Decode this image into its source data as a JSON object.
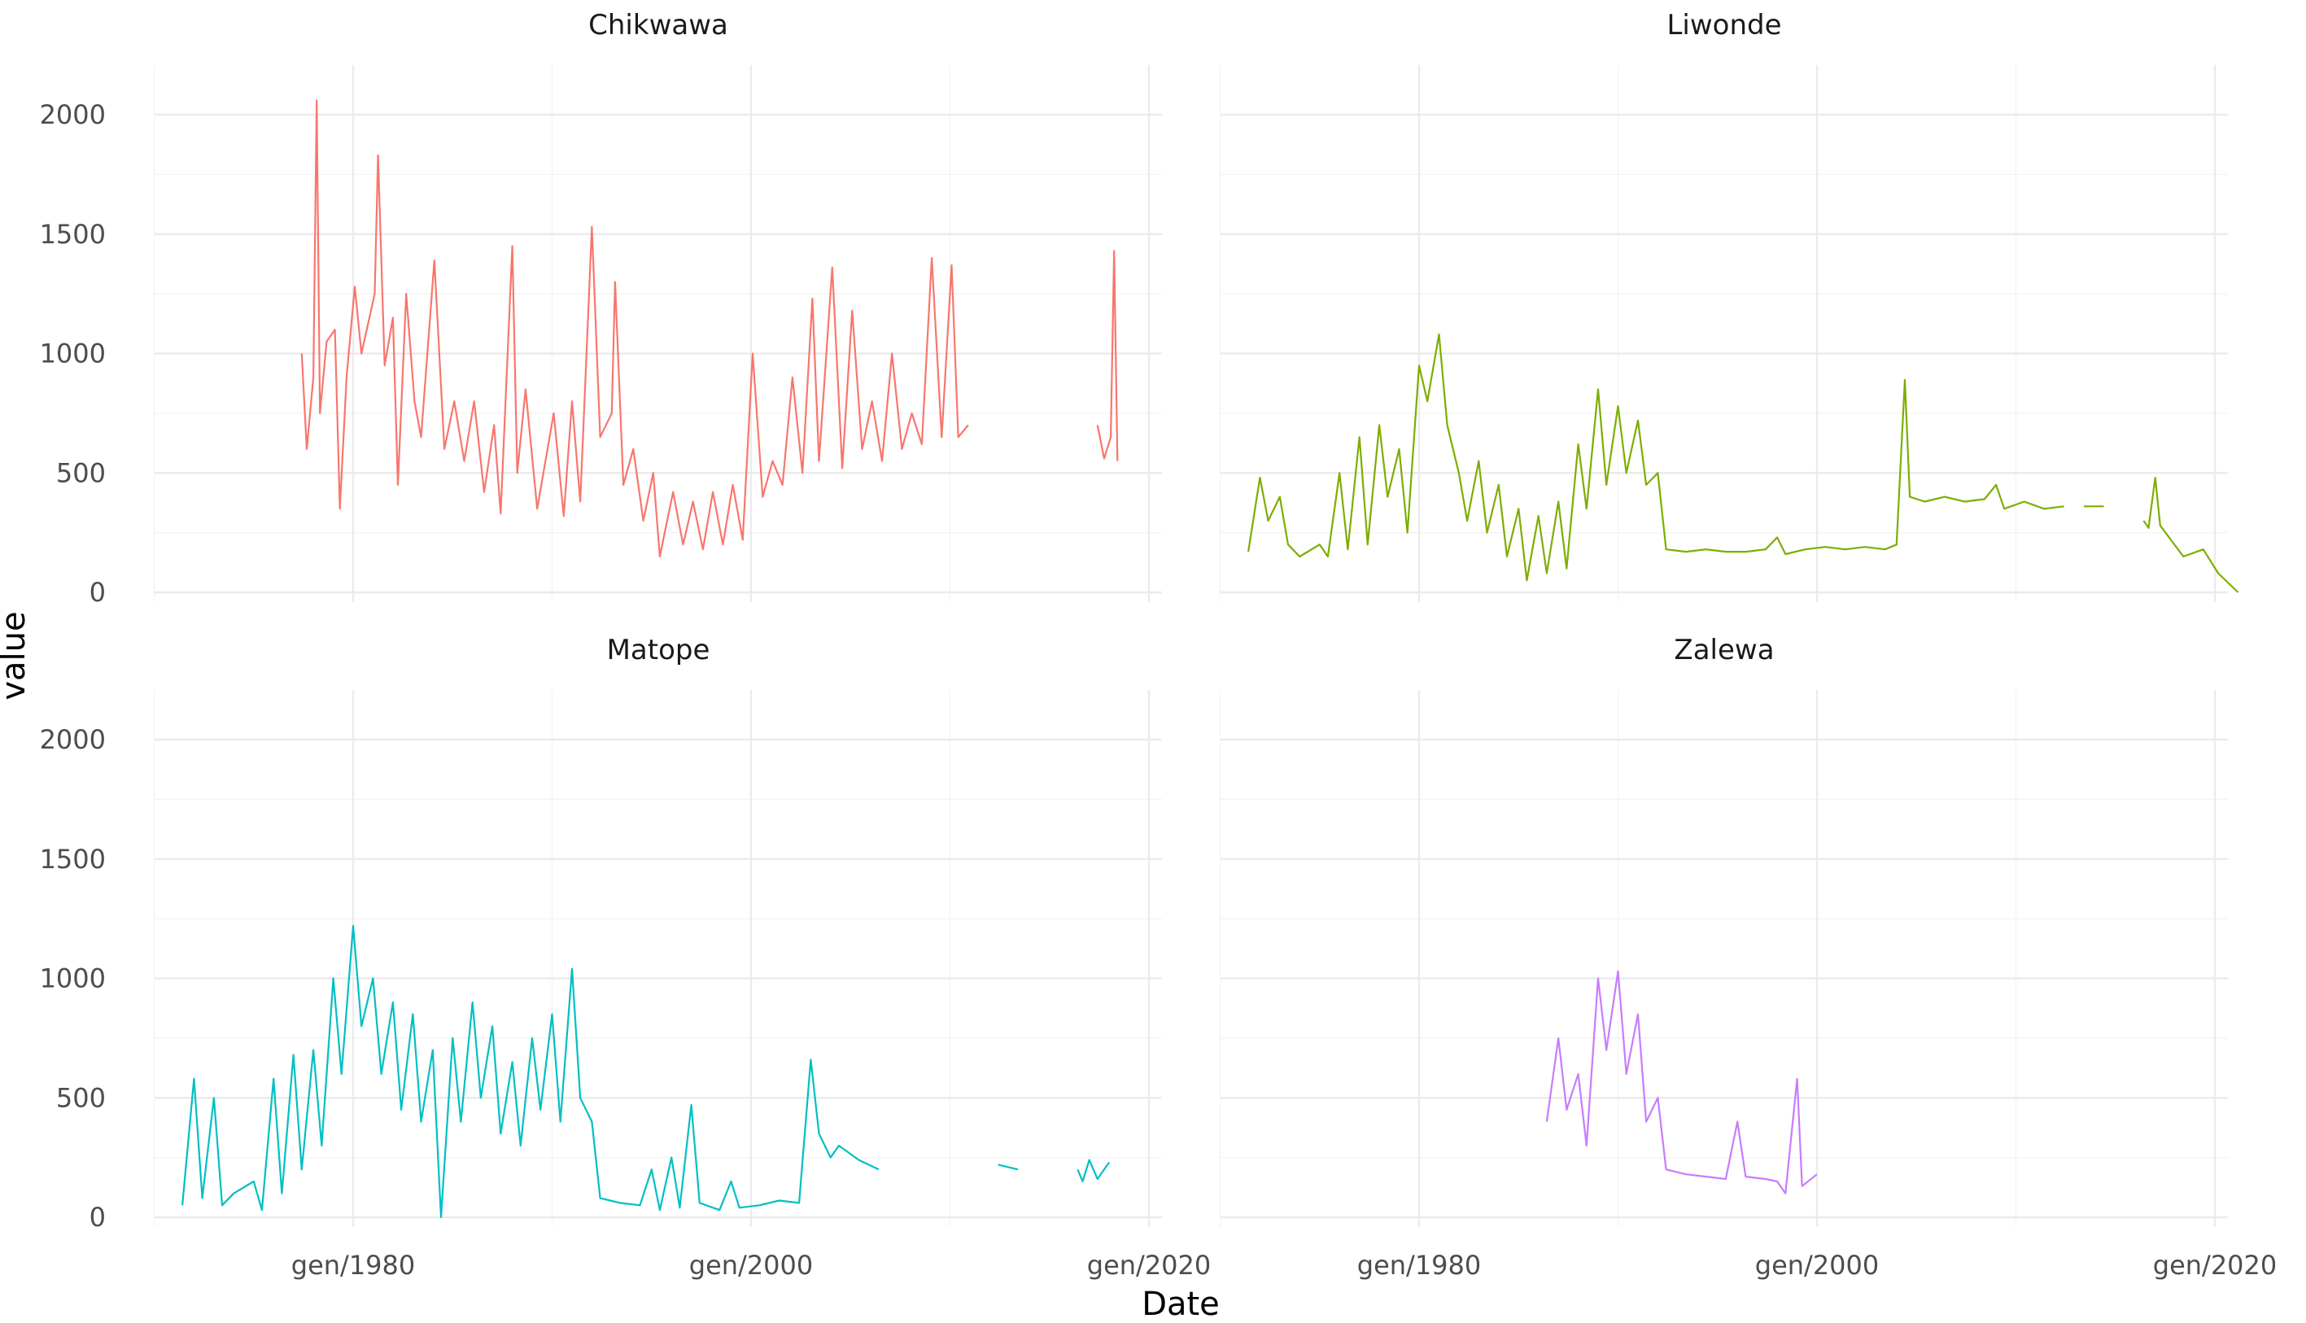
{
  "chart_data": {
    "type": "line",
    "facet_layout": "2x2",
    "xlabel": "Date",
    "ylabel": "value",
    "x_ticks": [
      "gen/1980",
      "gen/2000",
      "gen/2020"
    ],
    "xlim": [
      "1970-01",
      "2020-01"
    ],
    "y_ticks": [
      "0",
      "500",
      "1000",
      "1500",
      "2000"
    ],
    "ylim": [
      0,
      2100
    ],
    "grid": "on",
    "legend": "none",
    "panels": [
      {
        "name": "Chikwawa",
        "color": "#F8766D",
        "points": [
          [
            "1977-06",
            1000
          ],
          [
            "1977-09",
            600
          ],
          [
            "1978-01",
            900
          ],
          [
            "1978-03",
            2060
          ],
          [
            "1978-05",
            750
          ],
          [
            "1978-09",
            1050
          ],
          [
            "1979-02",
            1100
          ],
          [
            "1979-05",
            350
          ],
          [
            "1979-09",
            900
          ],
          [
            "1980-02",
            1280
          ],
          [
            "1980-06",
            1000
          ],
          [
            "1981-02",
            1250
          ],
          [
            "1981-04",
            1830
          ],
          [
            "1981-08",
            950
          ],
          [
            "1982-01",
            1150
          ],
          [
            "1982-04",
            450
          ],
          [
            "1982-09",
            1250
          ],
          [
            "1983-02",
            800
          ],
          [
            "1983-06",
            650
          ],
          [
            "1984-02",
            1390
          ],
          [
            "1984-08",
            600
          ],
          [
            "1985-02",
            800
          ],
          [
            "1985-08",
            550
          ],
          [
            "1986-02",
            800
          ],
          [
            "1986-08",
            420
          ],
          [
            "1987-02",
            700
          ],
          [
            "1987-06",
            330
          ],
          [
            "1988-01",
            1450
          ],
          [
            "1988-04",
            500
          ],
          [
            "1988-09",
            850
          ],
          [
            "1989-04",
            350
          ],
          [
            "1990-02",
            750
          ],
          [
            "1990-08",
            320
          ],
          [
            "1991-01",
            800
          ],
          [
            "1991-06",
            380
          ],
          [
            "1992-01",
            1530
          ],
          [
            "1992-06",
            650
          ],
          [
            "1993-01",
            750
          ],
          [
            "1993-03",
            1300
          ],
          [
            "1993-08",
            450
          ],
          [
            "1994-02",
            600
          ],
          [
            "1994-08",
            300
          ],
          [
            "1995-02",
            500
          ],
          [
            "1995-06",
            150
          ],
          [
            "1996-02",
            420
          ],
          [
            "1996-08",
            200
          ],
          [
            "1997-02",
            380
          ],
          [
            "1997-08",
            180
          ],
          [
            "1998-02",
            420
          ],
          [
            "1998-08",
            200
          ],
          [
            "1999-02",
            450
          ],
          [
            "1999-08",
            220
          ],
          [
            "2000-02",
            1000
          ],
          [
            "2000-08",
            400
          ],
          [
            "2001-02",
            550
          ],
          [
            "2001-08",
            450
          ],
          [
            "2002-02",
            900
          ],
          [
            "2002-08",
            500
          ],
          [
            "2003-02",
            1230
          ],
          [
            "2003-06",
            550
          ],
          [
            "2004-02",
            1360
          ],
          [
            "2004-08",
            520
          ],
          [
            "2005-02",
            1180
          ],
          [
            "2005-08",
            600
          ],
          [
            "2006-02",
            800
          ],
          [
            "2006-08",
            550
          ],
          [
            "2007-02",
            1000
          ],
          [
            "2007-08",
            600
          ],
          [
            "2008-02",
            750
          ],
          [
            "2008-08",
            620
          ],
          [
            "2009-02",
            1400
          ],
          [
            "2009-08",
            650
          ],
          [
            "2010-02",
            1370
          ],
          [
            "2010-06",
            650
          ],
          [
            "2010-12",
            700
          ],
          [
            null,
            null
          ],
          [
            "2017-06",
            700
          ],
          [
            "2017-10",
            560
          ],
          [
            "2018-02",
            650
          ],
          [
            "2018-04",
            1430
          ],
          [
            "2018-06",
            550
          ]
        ]
      },
      {
        "name": "Liwonde",
        "color": "#7CAE00",
        "points": [
          [
            "1971-06",
            170
          ],
          [
            "1972-01",
            480
          ],
          [
            "1972-06",
            300
          ],
          [
            "1973-01",
            400
          ],
          [
            "1973-06",
            200
          ],
          [
            "1974-01",
            150
          ],
          [
            "1975-01",
            200
          ],
          [
            "1975-06",
            150
          ],
          [
            "1976-01",
            500
          ],
          [
            "1976-06",
            180
          ],
          [
            "1977-01",
            650
          ],
          [
            "1977-06",
            200
          ],
          [
            "1978-01",
            700
          ],
          [
            "1978-06",
            400
          ],
          [
            "1979-01",
            600
          ],
          [
            "1979-06",
            250
          ],
          [
            "1980-01",
            950
          ],
          [
            "1980-06",
            800
          ],
          [
            "1981-01",
            1080
          ],
          [
            "1981-06",
            700
          ],
          [
            "1982-01",
            500
          ],
          [
            "1982-06",
            300
          ],
          [
            "1983-01",
            550
          ],
          [
            "1983-06",
            250
          ],
          [
            "1984-01",
            450
          ],
          [
            "1984-06",
            150
          ],
          [
            "1985-01",
            350
          ],
          [
            "1985-06",
            50
          ],
          [
            "1986-01",
            320
          ],
          [
            "1986-06",
            80
          ],
          [
            "1987-01",
            380
          ],
          [
            "1987-06",
            100
          ],
          [
            "1988-01",
            620
          ],
          [
            "1988-06",
            350
          ],
          [
            "1989-01",
            850
          ],
          [
            "1989-06",
            450
          ],
          [
            "1990-01",
            780
          ],
          [
            "1990-06",
            500
          ],
          [
            "1991-01",
            720
          ],
          [
            "1991-06",
            450
          ],
          [
            "1992-01",
            500
          ],
          [
            "1992-06",
            180
          ],
          [
            "1993-06",
            170
          ],
          [
            "1994-06",
            180
          ],
          [
            "1995-06",
            170
          ],
          [
            "1996-06",
            170
          ],
          [
            "1997-06",
            180
          ],
          [
            "1998-01",
            230
          ],
          [
            "1998-06",
            160
          ],
          [
            "1999-06",
            180
          ],
          [
            "2000-06",
            190
          ],
          [
            "2001-06",
            180
          ],
          [
            "2002-06",
            190
          ],
          [
            "2003-06",
            180
          ],
          [
            "2004-01",
            200
          ],
          [
            "2004-06",
            890
          ],
          [
            "2004-09",
            400
          ],
          [
            "2005-06",
            380
          ],
          [
            "2006-06",
            400
          ],
          [
            "2007-06",
            380
          ],
          [
            "2008-06",
            390
          ],
          [
            "2009-01",
            450
          ],
          [
            "2009-06",
            350
          ],
          [
            "2010-06",
            380
          ],
          [
            "2011-06",
            350
          ],
          [
            "2012-06",
            360
          ],
          [
            null,
            null
          ],
          [
            "2013-06",
            360
          ],
          [
            "2014-06",
            360
          ],
          [
            null,
            null
          ],
          [
            "2016-06",
            300
          ],
          [
            "2016-09",
            270
          ],
          [
            "2017-01",
            480
          ],
          [
            "2017-04",
            280
          ],
          [
            "2018-06",
            150
          ],
          [
            "2019-06",
            180
          ],
          [
            "2020-03",
            80
          ],
          [
            "2021-03",
            0
          ]
        ]
      },
      {
        "name": "Matope",
        "color": "#00BFC4",
        "points": [
          [
            "1971-06",
            50
          ],
          [
            "1972-01",
            580
          ],
          [
            "1972-06",
            80
          ],
          [
            "1973-01",
            500
          ],
          [
            "1973-06",
            50
          ],
          [
            "1974-01",
            100
          ],
          [
            "1975-01",
            150
          ],
          [
            "1975-06",
            30
          ],
          [
            "1976-01",
            580
          ],
          [
            "1976-06",
            100
          ],
          [
            "1977-01",
            680
          ],
          [
            "1977-06",
            200
          ],
          [
            "1978-01",
            700
          ],
          [
            "1978-06",
            300
          ],
          [
            "1979-01",
            1000
          ],
          [
            "1979-06",
            600
          ],
          [
            "1980-01",
            1220
          ],
          [
            "1980-06",
            800
          ],
          [
            "1981-01",
            1000
          ],
          [
            "1981-06",
            600
          ],
          [
            "1982-01",
            900
          ],
          [
            "1982-06",
            450
          ],
          [
            "1983-01",
            850
          ],
          [
            "1983-06",
            400
          ],
          [
            "1984-01",
            700
          ],
          [
            "1984-06",
            0
          ],
          [
            "1985-01",
            750
          ],
          [
            "1985-06",
            400
          ],
          [
            "1986-01",
            900
          ],
          [
            "1986-06",
            500
          ],
          [
            "1987-01",
            800
          ],
          [
            "1987-06",
            350
          ],
          [
            "1988-01",
            650
          ],
          [
            "1988-06",
            300
          ],
          [
            "1989-01",
            750
          ],
          [
            "1989-06",
            450
          ],
          [
            "1990-01",
            850
          ],
          [
            "1990-06",
            400
          ],
          [
            "1991-01",
            1040
          ],
          [
            "1991-06",
            500
          ],
          [
            "1992-01",
            400
          ],
          [
            "1992-06",
            80
          ],
          [
            "1993-06",
            60
          ],
          [
            "1994-06",
            50
          ],
          [
            "1995-01",
            200
          ],
          [
            "1995-06",
            30
          ],
          [
            "1996-01",
            250
          ],
          [
            "1996-06",
            40
          ],
          [
            "1997-01",
            470
          ],
          [
            "1997-06",
            60
          ],
          [
            "1998-06",
            30
          ],
          [
            "1999-01",
            150
          ],
          [
            "1999-06",
            40
          ],
          [
            "2000-06",
            50
          ],
          [
            "2001-06",
            70
          ],
          [
            "2002-06",
            60
          ],
          [
            "2003-01",
            660
          ],
          [
            "2003-06",
            350
          ],
          [
            "2004-01",
            250
          ],
          [
            "2004-06",
            300
          ],
          [
            "2005-06",
            240
          ],
          [
            "2006-06",
            200
          ],
          [
            null,
            null
          ],
          [
            "2012-06",
            220
          ],
          [
            "2013-06",
            200
          ],
          [
            null,
            null
          ],
          [
            "2016-06",
            200
          ],
          [
            "2016-09",
            150
          ],
          [
            "2017-01",
            240
          ],
          [
            "2017-06",
            160
          ],
          [
            "2018-01",
            230
          ]
        ]
      },
      {
        "name": "Zalewa",
        "color": "#C77CFF",
        "points": [
          [
            "1986-06",
            400
          ],
          [
            "1987-01",
            750
          ],
          [
            "1987-06",
            450
          ],
          [
            "1988-01",
            600
          ],
          [
            "1988-06",
            300
          ],
          [
            "1989-01",
            1000
          ],
          [
            "1989-06",
            700
          ],
          [
            "1990-01",
            1030
          ],
          [
            "1990-06",
            600
          ],
          [
            "1991-01",
            850
          ],
          [
            "1991-06",
            400
          ],
          [
            "1992-01",
            500
          ],
          [
            "1992-06",
            200
          ],
          [
            "1993-06",
            180
          ],
          [
            "1994-06",
            170
          ],
          [
            "1995-06",
            160
          ],
          [
            "1996-01",
            400
          ],
          [
            "1996-06",
            170
          ],
          [
            "1997-06",
            160
          ],
          [
            "1998-01",
            150
          ],
          [
            "1998-06",
            100
          ],
          [
            "1999-01",
            580
          ],
          [
            "1999-04",
            130
          ],
          [
            "2000-01",
            180
          ]
        ]
      }
    ]
  }
}
